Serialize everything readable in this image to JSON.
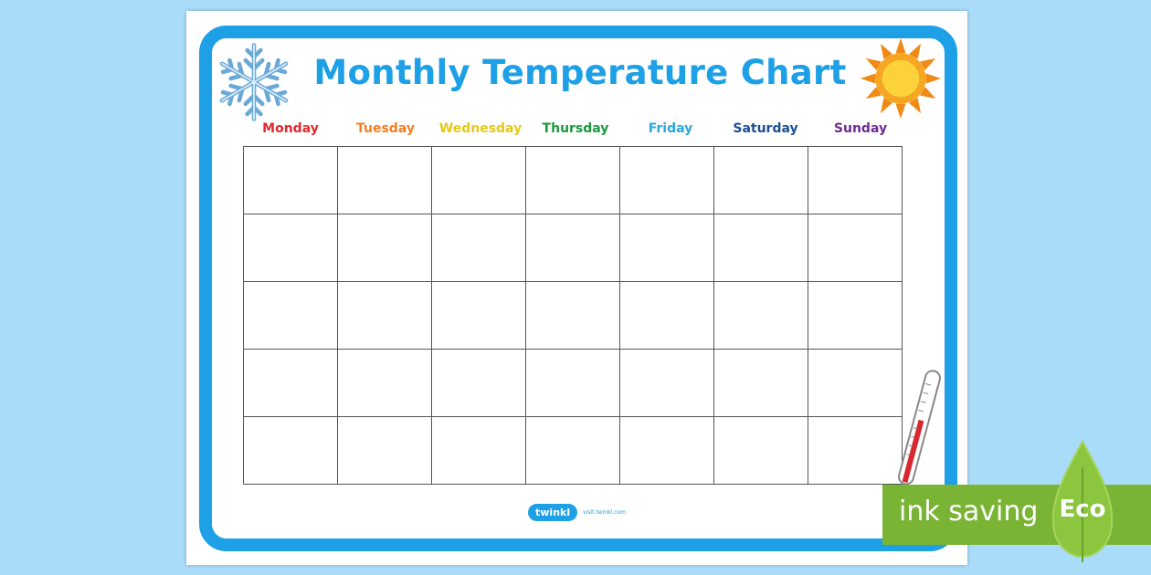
{
  "document": {
    "title": "Monthly Temperature Chart",
    "days": [
      {
        "label": "Monday",
        "color": "#e8262c"
      },
      {
        "label": "Tuesday",
        "color": "#f47f20"
      },
      {
        "label": "Wednesday",
        "color": "#e5c81a"
      },
      {
        "label": "Thursday",
        "color": "#1a9a3c"
      },
      {
        "label": "Friday",
        "color": "#2aa8e0"
      },
      {
        "label": "Saturday",
        "color": "#1b4f93"
      },
      {
        "label": "Sunday",
        "color": "#6d2c91"
      }
    ],
    "grid_rows": 5,
    "grid_cols": 7,
    "icons": [
      "snowflake-icon",
      "sun-icon",
      "thermometer-icon"
    ],
    "footer": {
      "brand": "twinkl",
      "url": "visit twinkl.com"
    }
  },
  "eco_banner": {
    "label": "ink saving",
    "badge": "Eco",
    "color": "#7ab434"
  },
  "colors": {
    "accent": "#1ea0e6",
    "background": "#a9dcf9"
  }
}
